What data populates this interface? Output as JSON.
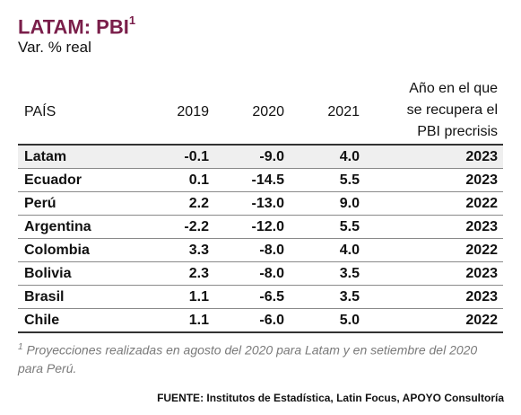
{
  "title": "LATAM: PBI",
  "title_sup": "1",
  "subtitle": "Var. % real",
  "headers": {
    "country": "PAÍS",
    "y2019": "2019",
    "y2020": "2020",
    "y2021": "2021",
    "recovery_line1": "Año en el que",
    "recovery_line2": "se recupera el",
    "recovery_line3": "PBI precrisis"
  },
  "rows": [
    {
      "country": "Latam",
      "y2019": "-0.1",
      "y2020": "-9.0",
      "y2021": "4.0",
      "recovery": "2023"
    },
    {
      "country": "Ecuador",
      "y2019": "0.1",
      "y2020": "-14.5",
      "y2021": "5.5",
      "recovery": "2023"
    },
    {
      "country": "Perú",
      "y2019": "2.2",
      "y2020": "-13.0",
      "y2021": "9.0",
      "recovery": "2022"
    },
    {
      "country": "Argentina",
      "y2019": "-2.2",
      "y2020": "-12.0",
      "y2021": "5.5",
      "recovery": "2023"
    },
    {
      "country": "Colombia",
      "y2019": "3.3",
      "y2020": "-8.0",
      "y2021": "4.0",
      "recovery": "2022"
    },
    {
      "country": "Bolivia",
      "y2019": "2.3",
      "y2020": "-8.0",
      "y2021": "3.5",
      "recovery": "2023"
    },
    {
      "country": "Brasil",
      "y2019": "1.1",
      "y2020": "-6.5",
      "y2021": "3.5",
      "recovery": "2023"
    },
    {
      "country": "Chile",
      "y2019": "1.1",
      "y2020": "-6.0",
      "y2021": "5.0",
      "recovery": "2022"
    }
  ],
  "footnote_sup": "1",
  "footnote": "Proyecciones realizadas en agosto del 2020 para Latam y en setiembre del 2020 para Perú.",
  "source": "FUENTE: Institutos de Estadística, Latin Focus, APOYO Consultoría",
  "colors": {
    "title": "#7a1e4a",
    "highlight_row": "#efefef",
    "footnote": "#7a7a7a"
  }
}
